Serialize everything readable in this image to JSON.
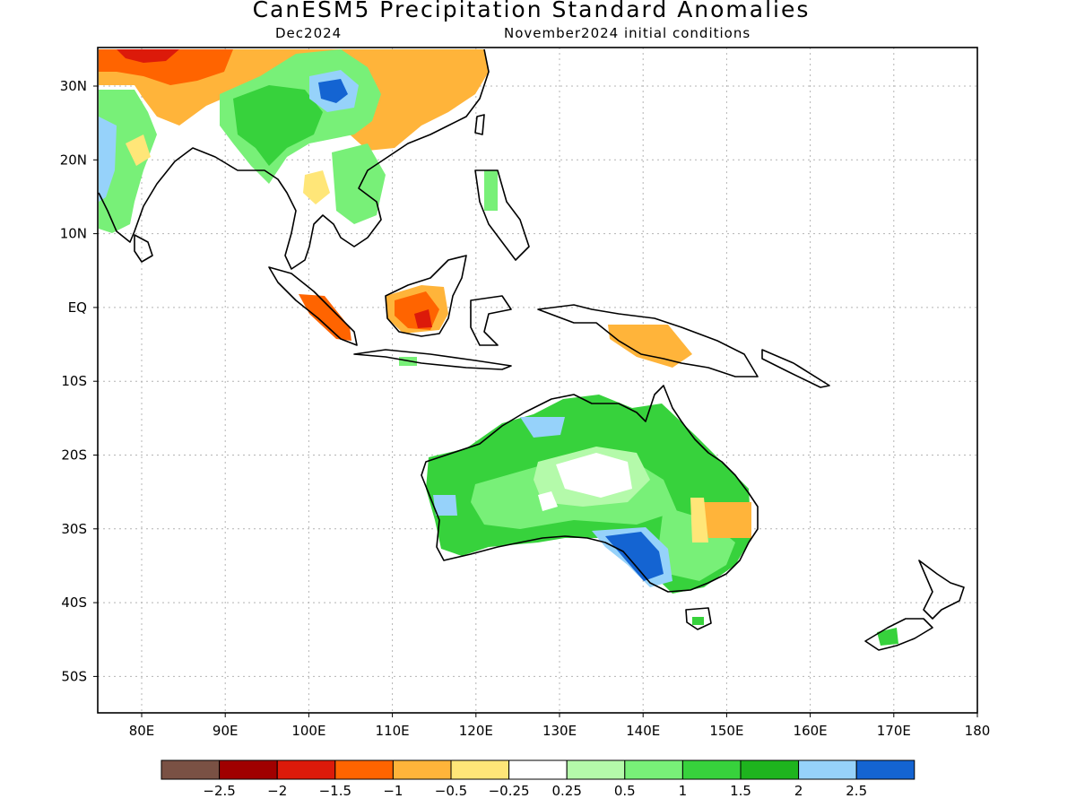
{
  "title": "CanESM5 Precipitation Standard Anomalies",
  "subtitle_left": "Dec2024",
  "subtitle_right": "November2024 initial conditions",
  "y_ticks": [
    "30N",
    "20N",
    "10N",
    "EQ",
    "10S",
    "20S",
    "30S",
    "40S",
    "50S"
  ],
  "x_ticks": [
    "80E",
    "90E",
    "100E",
    "110E",
    "120E",
    "130E",
    "140E",
    "150E",
    "160E",
    "170E",
    "180"
  ],
  "colorbar": {
    "colors": [
      "#7a5144",
      "#a00000",
      "#dc1a0a",
      "#ff6400",
      "#ffb43a",
      "#ffe678",
      "#ffffff",
      "#b4faaa",
      "#78f078",
      "#37d23c",
      "#1eb41e",
      "#96d2fa",
      "#1464d2"
    ],
    "labels": [
      "−2.5",
      "−2",
      "−1.5",
      "−1",
      "−0.5",
      "−0.25",
      "0.25",
      "0.5",
      "1",
      "1.5",
      "2",
      "2.5"
    ]
  },
  "colors": {
    "dry_strong": "#ff6400",
    "dry": "#ffb43a",
    "wet": "#37d23c",
    "very_wet": "#1464d2"
  }
}
